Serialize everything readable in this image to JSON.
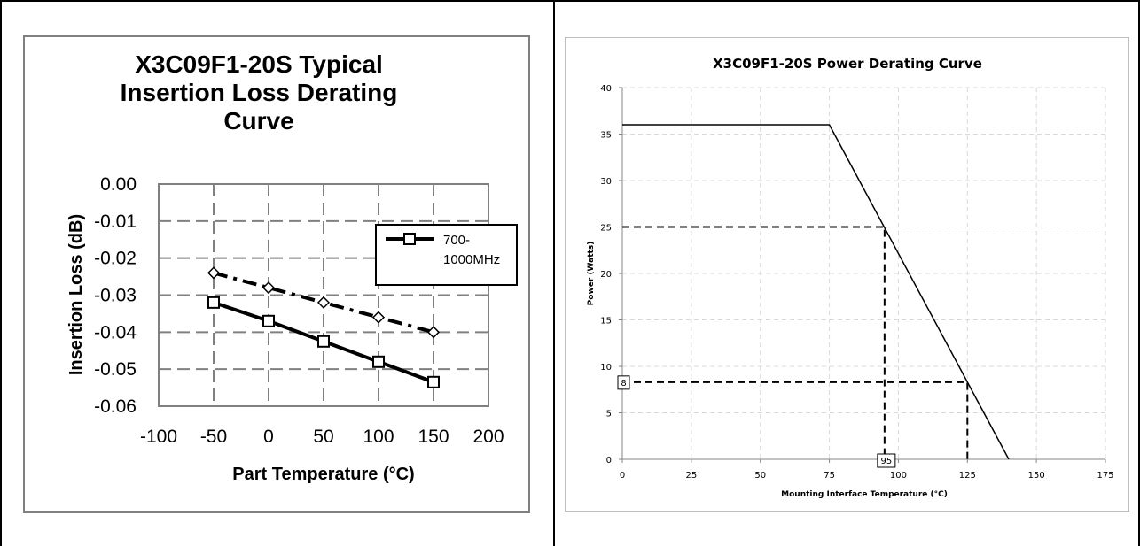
{
  "chart_data": [
    {
      "type": "line",
      "title": "X3C09F1-20S Typical Insertion Loss Derating Curve",
      "title_lines": [
        "X3C09F1-20S Typical",
        "Insertion Loss Derating",
        "Curve"
      ],
      "xlabel": "Part Temperature (°C)",
      "ylabel": "Insertion Loss (dB)",
      "xlim": [
        -100,
        200
      ],
      "ylim": [
        -0.06,
        0.0
      ],
      "xticks": [
        -100,
        -50,
        0,
        50,
        100,
        150,
        200
      ],
      "yticks": [
        0.0,
        -0.01,
        -0.02,
        -0.03,
        -0.04,
        -0.05,
        -0.06
      ],
      "ytick_labels": [
        "0.00",
        "-0.01",
        "-0.02",
        "-0.03",
        "-0.04",
        "-0.05",
        "-0.06"
      ],
      "grid": true,
      "legend_position": "right",
      "legend_lines": [
        "700-",
        "1000MHz"
      ],
      "series": [
        {
          "name": "700-1000MHz",
          "marker": "square",
          "style": "solid",
          "x": [
            -50,
            0,
            50,
            100,
            150
          ],
          "y": [
            -0.032,
            -0.037,
            -0.0425,
            -0.048,
            -0.0535
          ]
        },
        {
          "marker": "diamond",
          "style": "dash-dot",
          "x": [
            -50,
            0,
            50,
            100,
            150
          ],
          "y": [
            -0.024,
            -0.028,
            -0.032,
            -0.036,
            -0.04
          ]
        }
      ]
    },
    {
      "type": "line",
      "title": "X3C09F1-20S Power Derating Curve",
      "xlabel": "Mounting Interface Temperature (°C)",
      "ylabel": "Power (Watts)",
      "xlim": [
        0,
        175
      ],
      "ylim": [
        0,
        40
      ],
      "xticks": [
        0,
        25,
        50,
        75,
        100,
        125,
        150,
        175
      ],
      "yticks": [
        0,
        5,
        10,
        15,
        20,
        25,
        30,
        35,
        40
      ],
      "grid": true,
      "series": [
        {
          "style": "solid",
          "x": [
            0,
            75,
            140
          ],
          "y": [
            36,
            36,
            0
          ]
        }
      ],
      "reference_lines": [
        {
          "x": [
            0,
            95,
            95
          ],
          "y": [
            25,
            25,
            0
          ]
        },
        {
          "x": [
            0,
            125,
            125
          ],
          "y": [
            8.3,
            8.3,
            0
          ]
        }
      ],
      "annotations": [
        {
          "text": "8",
          "axis": "y",
          "value": 8
        },
        {
          "text": "95",
          "axis": "x",
          "value": 95
        }
      ]
    }
  ]
}
